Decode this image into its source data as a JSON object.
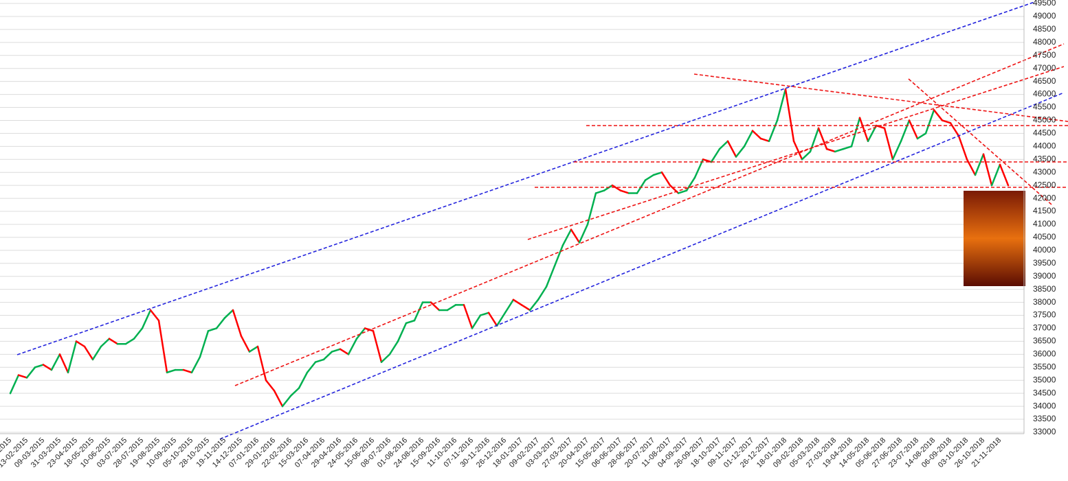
{
  "chart_data": {
    "type": "line",
    "categories": [
      "-2015",
      null,
      "13-02-2015",
      null,
      "09-03-2015",
      null,
      "31-03-2015",
      null,
      "23-04-2015",
      null,
      "18-05-2015",
      null,
      "10-06-2015",
      null,
      "03-07-2015",
      null,
      "28-07-2015",
      null,
      "19-08-2015",
      null,
      "10-09-2015",
      null,
      "05-10-2015",
      null,
      "28-10-2015",
      null,
      "19-11-2015",
      null,
      "14-12-2015",
      null,
      "07-01-2016",
      null,
      "29-01-2016",
      null,
      "22-02-2016",
      null,
      "15-03-2016",
      null,
      "07-04-2016",
      null,
      "29-04-2016",
      null,
      "24-05-2016",
      null,
      "15-06-2016",
      null,
      "08-07-2016",
      null,
      "01-08-2016",
      null,
      "24-08-2016",
      null,
      "15-09-2016",
      null,
      "11-10-2016",
      null,
      "07-11-2016",
      null,
      "30-11-2016",
      null,
      "26-12-2016",
      null,
      "18-01-2017",
      null,
      "09-02-2017",
      null,
      "03-03-2017",
      null,
      "27-03-2017",
      null,
      "20-04-2017",
      null,
      "15-05-2017",
      null,
      "06-06-2017",
      null,
      "28-06-2017",
      null,
      "20-07-2017",
      null,
      "11-08-2017",
      null,
      "04-09-2017",
      null,
      "26-09-2017",
      null,
      "18-10-2017",
      null,
      "09-11-2017",
      null,
      "01-12-2017",
      null,
      "26-12-2017",
      null,
      "18-01-2018",
      null,
      "09-02-2018",
      null,
      "05-03-2018",
      null,
      "27-03-2018",
      null,
      "19-04-2018",
      null,
      "14-05-2018",
      null,
      "05-06-2018",
      null,
      "27-06-2018",
      null,
      "23-07-2018",
      null,
      "14-08-2018",
      null,
      "06-09-2018",
      null,
      "03-10-2018",
      null,
      "26-10-2018",
      null,
      "21-11-2018",
      null
    ],
    "values": [
      34500,
      35200,
      35100,
      35500,
      35600,
      35400,
      36000,
      35300,
      36500,
      36300,
      35800,
      36300,
      36600,
      36400,
      36400,
      36600,
      37000,
      37700,
      37300,
      35300,
      35400,
      35400,
      35300,
      35900,
      36900,
      37000,
      37400,
      37700,
      36700,
      36100,
      36300,
      35000,
      34600,
      34000,
      34400,
      34700,
      35300,
      35700,
      35800,
      36100,
      36200,
      36000,
      36600,
      37000,
      36900,
      35700,
      36000,
      36500,
      37200,
      37300,
      38000,
      38000,
      37700,
      37700,
      37900,
      37900,
      37000,
      37500,
      37600,
      37100,
      37600,
      38100,
      37900,
      37700,
      38100,
      38600,
      39400,
      40200,
      40800,
      40300,
      41000,
      42200,
      42300,
      42500,
      42300,
      42200,
      42200,
      42700,
      42900,
      43000,
      42500,
      42200,
      42300,
      42800,
      43500,
      43400,
      43900,
      44200,
      43600,
      44000,
      44600,
      44300,
      44200,
      45000,
      46200,
      44200,
      43500,
      43800,
      44700,
      43900,
      43800,
      43900,
      44000,
      45100,
      44200,
      44800,
      44700,
      43500,
      44200,
      45000,
      44300,
      44500,
      45400,
      45000,
      44900,
      44400,
      43500,
      42900,
      43700,
      42500,
      43300,
      42500
    ],
    "up_color": "#00b050",
    "down_color": "#ff0000",
    "ylim": [
      33000,
      49500
    ],
    "yticks": [
      33000,
      33500,
      34000,
      34500,
      35000,
      35500,
      36000,
      36500,
      37000,
      37500,
      38000,
      38500,
      39000,
      39500,
      40000,
      40500,
      41000,
      41500,
      42000,
      42500,
      43000,
      43500,
      44000,
      44500,
      45000,
      45500,
      46000,
      46500,
      47000,
      47500,
      48000,
      48500,
      49000,
      49500
    ],
    "grid": true
  }
}
